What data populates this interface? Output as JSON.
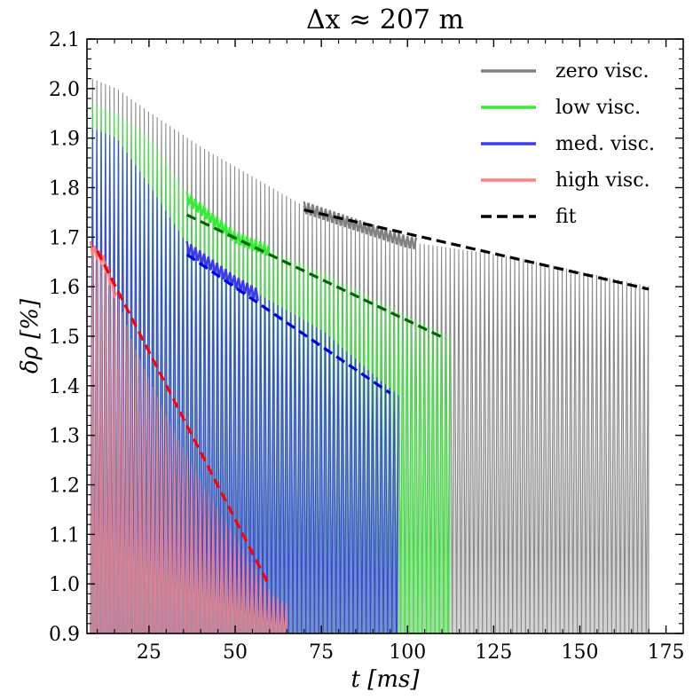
{
  "chart_data": {
    "type": "line",
    "title": "Δx ≈ 207 m",
    "xlabel": "t [ms]",
    "ylabel": "δρ [%]",
    "xlim": [
      7,
      180
    ],
    "ylim": [
      0.9,
      2.1
    ],
    "x_ticks": [
      25,
      50,
      75,
      100,
      125,
      150,
      175
    ],
    "x_tick_labels": [
      "25",
      "50",
      "75",
      "100",
      "125",
      "150",
      "175"
    ],
    "y_ticks": [
      0.9,
      1.0,
      1.1,
      1.2,
      1.3,
      1.4,
      1.5,
      1.6,
      1.7,
      1.8,
      1.9,
      2.0,
      2.1
    ],
    "y_tick_labels": [
      "0.9",
      "1.0",
      "1.1",
      "1.2",
      "1.3",
      "1.4",
      "1.5",
      "1.6",
      "1.7",
      "1.8",
      "1.9",
      "2.0",
      "2.1"
    ],
    "legend_position": "top-right",
    "grid": false,
    "oscillation_period_ms": 1.25,
    "series": [
      {
        "name": "zero visc.",
        "color": "#808080",
        "fill_opacity": 0.35,
        "t_start": 8,
        "t_end": 170,
        "envelope": [
          [
            8,
            2.02
          ],
          [
            15,
            2.0
          ],
          [
            25,
            1.95
          ],
          [
            40,
            1.88
          ],
          [
            55,
            1.82
          ],
          [
            70,
            1.76
          ],
          [
            100,
            1.69
          ],
          [
            130,
            1.66
          ],
          [
            170,
            1.6
          ]
        ],
        "highlight_range": [
          70,
          103
        ]
      },
      {
        "name": "low visc.",
        "color": "#33ee33",
        "fill_opacity": 0.3,
        "t_start": 8,
        "t_end": 112,
        "envelope": [
          [
            8,
            1.97
          ],
          [
            15,
            1.95
          ],
          [
            25,
            1.9
          ],
          [
            36,
            1.78
          ],
          [
            50,
            1.7
          ],
          [
            75,
            1.63
          ],
          [
            100,
            1.54
          ],
          [
            112,
            1.5
          ]
        ],
        "highlight_range": [
          36,
          60
        ]
      },
      {
        "name": "med. visc.",
        "color": "#3a3aee",
        "fill_opacity": 0.45,
        "t_start": 8,
        "t_end": 97,
        "envelope": [
          [
            8,
            1.92
          ],
          [
            15,
            1.9
          ],
          [
            25,
            1.8
          ],
          [
            36,
            1.68
          ],
          [
            50,
            1.61
          ],
          [
            75,
            1.51
          ],
          [
            90,
            1.42
          ],
          [
            97,
            1.38
          ]
        ],
        "highlight_range": [
          36,
          57
        ]
      },
      {
        "name": "high visc.",
        "color": "#ff7f7f",
        "fill_opacity": 0.45,
        "t_start": 8,
        "t_end": 65,
        "envelope": [
          [
            8,
            1.68
          ],
          [
            12,
            1.65
          ],
          [
            20,
            1.48
          ],
          [
            30,
            1.33
          ],
          [
            40,
            1.2
          ],
          [
            50,
            1.09
          ],
          [
            60,
            0.98
          ],
          [
            65,
            0.96
          ]
        ],
        "highlight_range": [
          8,
          16
        ]
      },
      {
        "name": "fit",
        "color": "#000000",
        "dashed": true,
        "fits": [
          {
            "color": "#000000",
            "x": [
              70,
              170
            ],
            "y": [
              1.755,
              1.595
            ]
          },
          {
            "color": "#006600",
            "x": [
              36,
              111
            ],
            "y": [
              1.745,
              1.495
            ]
          },
          {
            "color": "#0000ee",
            "x": [
              36,
              95
            ],
            "y": [
              1.665,
              1.385
            ]
          },
          {
            "color": "#ff0000",
            "x": [
              10,
              60
            ],
            "y": [
              1.672,
              0.995
            ]
          }
        ]
      }
    ]
  }
}
